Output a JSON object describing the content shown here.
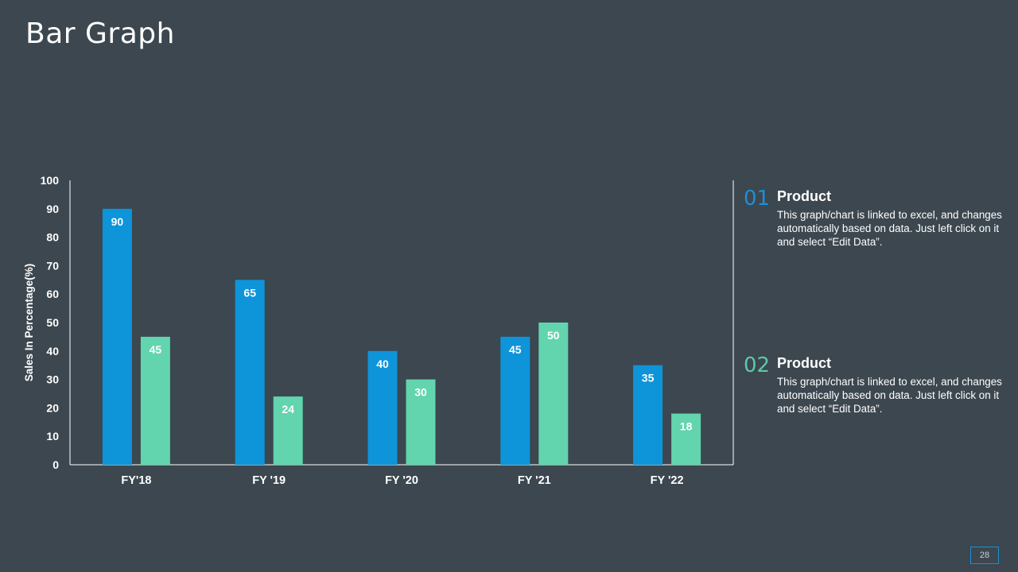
{
  "slide": {
    "title": "Bar Graph",
    "page_number": "28"
  },
  "colors": {
    "background": "#3c474f",
    "series1": "#0e94d9",
    "series2": "#62d4ae",
    "axis": "#ffffff",
    "text": "#ffffff",
    "num1": "#1e8fd6",
    "num2": "#5cc9a7"
  },
  "legend": [
    {
      "number": "01",
      "title": "Product",
      "text": "This graph/chart is linked to excel, and changes automatically based on data. Just left click on it and select “Edit Data”."
    },
    {
      "number": "02",
      "title": "Product",
      "text": "This graph/chart is linked to excel, and changes automatically based on data. Just left click on it and select “Edit Data”."
    }
  ],
  "chart_data": {
    "type": "bar",
    "title": "",
    "xlabel": "",
    "ylabel": "Sales In Percentage(%)",
    "ylim": [
      0,
      100
    ],
    "yticks": [
      "0",
      "10",
      "20",
      "30",
      "40",
      "50",
      "60",
      "70",
      "80",
      "90",
      "100"
    ],
    "categories": [
      "FY'18",
      "FY '19",
      "FY '20",
      "FY '21",
      "FY '22"
    ],
    "series": [
      {
        "name": "Product 01",
        "values": [
          90,
          65,
          40,
          45,
          35
        ]
      },
      {
        "name": "Product 02",
        "values": [
          45,
          24,
          30,
          50,
          18
        ]
      }
    ],
    "data_labels": true,
    "grid": false
  }
}
